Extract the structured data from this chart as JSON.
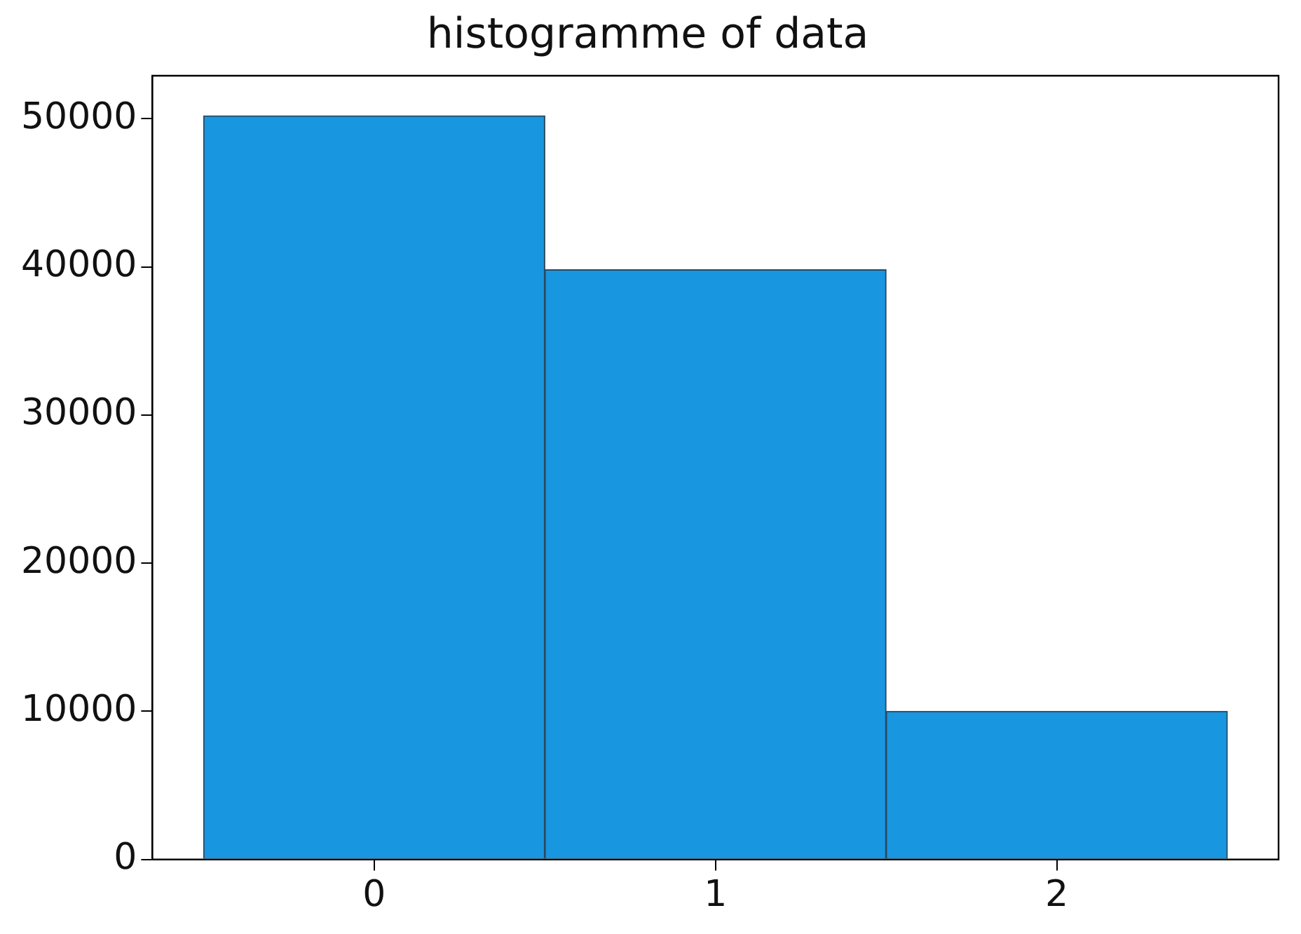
{
  "chart_data": {
    "type": "histogram",
    "title": "histogramme of data",
    "bins": [
      -0.5,
      0.5,
      1.5,
      2.5
    ],
    "values": [
      50200,
      39800,
      10000
    ],
    "color": "#1996e0",
    "xlim": [
      -0.65,
      2.65
    ],
    "xticks": [
      0,
      1,
      2
    ],
    "ylim": [
      0,
      52900
    ],
    "yticks": [
      0,
      10000,
      20000,
      30000,
      40000,
      50000
    ],
    "grid": false,
    "legend": false
  }
}
